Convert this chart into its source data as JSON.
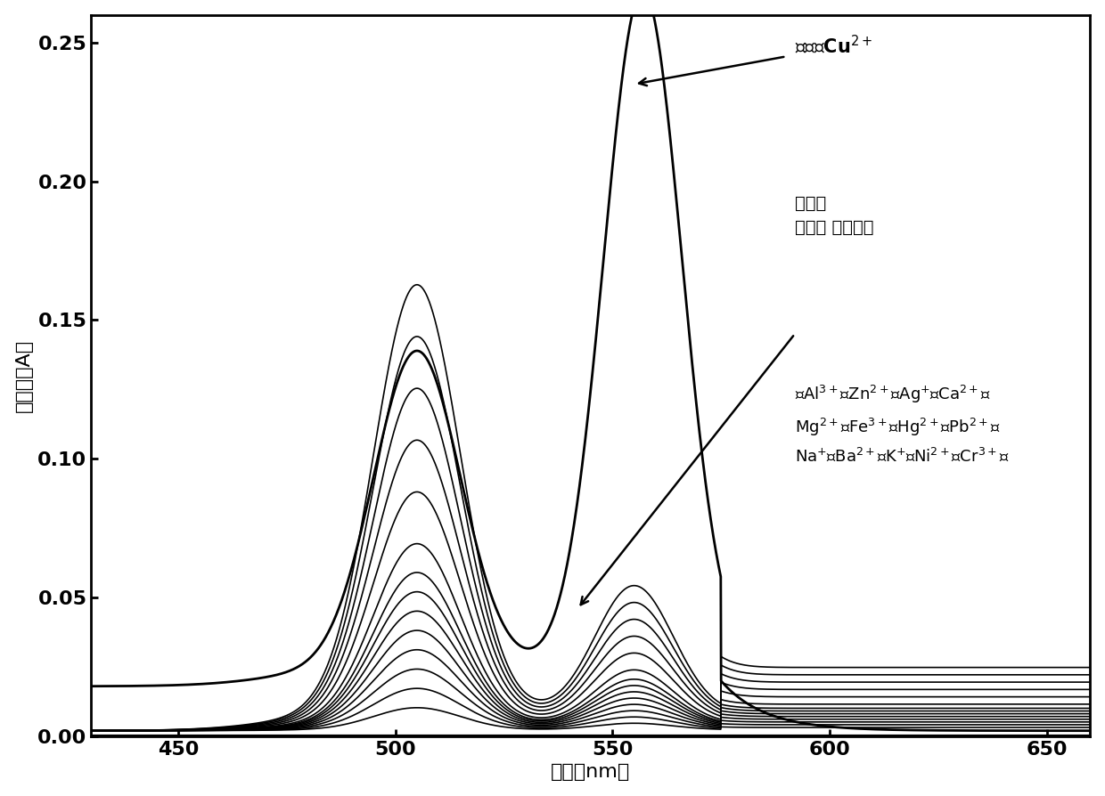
{
  "xlabel": "波长（nm）",
  "ylabel": "吸光度（A）",
  "xlim": [
    430,
    660
  ],
  "ylim": [
    0.0,
    0.26
  ],
  "yticks": [
    0.0,
    0.05,
    0.1,
    0.15,
    0.2,
    0.25
  ],
  "xticks": [
    450,
    500,
    550,
    600,
    650
  ],
  "background_color": "#ffffff",
  "num_other_lines": 14,
  "cu_label": "探针＋Cu",
  "probe_label_1": "探针，",
  "probe_label_2": "探针＋ 金属离子"
}
